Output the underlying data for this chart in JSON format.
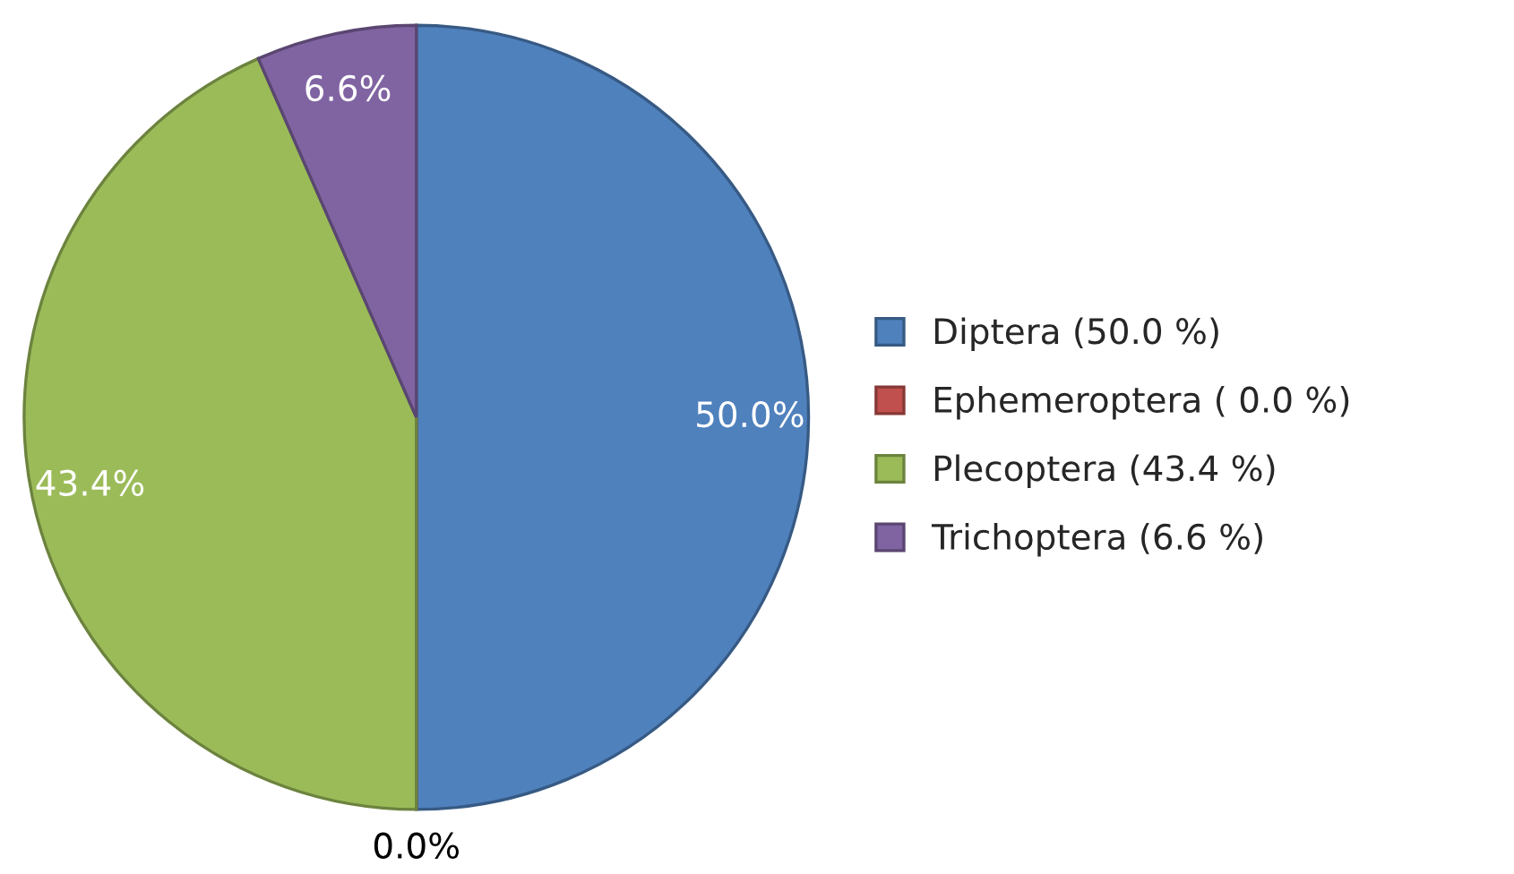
{
  "chart_data": {
    "type": "pie",
    "categories": [
      "Diptera (50.0 %)",
      "Ephemeroptera ( 0.0 %)",
      "Plecoptera (43.4 %)",
      "Trichoptera (6.6 %)"
    ],
    "values": [
      50.0,
      0.0,
      43.4,
      6.6
    ],
    "colors": [
      "#4f81bd",
      "#c0504d",
      "#9bbb59",
      "#8064a2"
    ],
    "value_labels": [
      "50.0%",
      "0.0%",
      "43.4%",
      "6.6%"
    ],
    "legend": "right"
  }
}
